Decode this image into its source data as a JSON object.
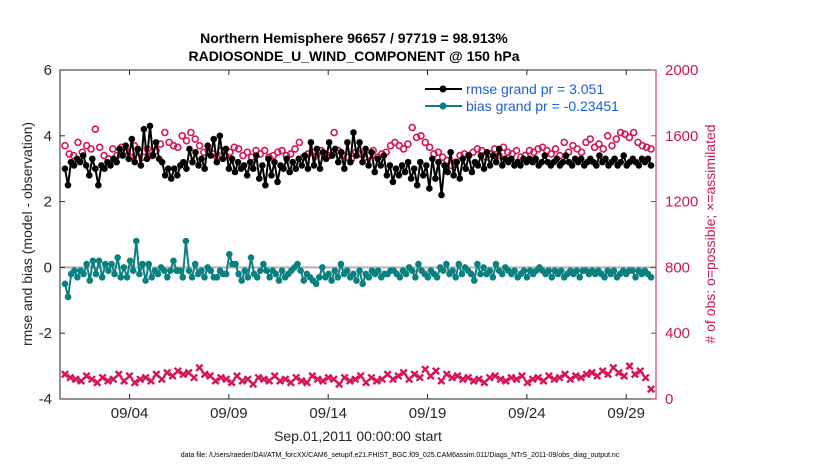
{
  "chart_data": {
    "type": "line",
    "title": "Northern Hemisphere 96657 / 97719 = 98.913%",
    "subtitle": "RADIOSONDE_U_WIND_COMPONENT @ 150 hPa",
    "xlabel": "Sep.01,2011 00:00:00 start",
    "ylabel_left": "rmse and bias (model - observation)",
    "ylabel_right": "# of obs: o=possible; ×=assimilated",
    "footnote": "data file: /Users/raeder/DAI/ATM_forcXX/CAM6_setup/f.e21.FHIST_BGC.f09_025.CAM6assim.011/Diags_NTrS_2011-09/obs_diag_output.nc",
    "xlim": [
      0.5,
      30.5
    ],
    "ylim_left": [
      -4,
      6
    ],
    "ylim_right": [
      0,
      2000
    ],
    "x_ticks": [
      {
        "value": 4,
        "label": "09/04"
      },
      {
        "value": 9,
        "label": "09/09"
      },
      {
        "value": 14,
        "label": "09/14"
      },
      {
        "value": 19,
        "label": "09/19"
      },
      {
        "value": 24,
        "label": "09/24"
      },
      {
        "value": 29,
        "label": "09/29"
      }
    ],
    "left_ticks": [
      "-4",
      "-2",
      "0",
      "2",
      "4",
      "6"
    ],
    "right_ticks": [
      "0",
      "400",
      "800",
      "1200",
      "1600",
      "2000"
    ],
    "legend_position": "top-right",
    "colors": {
      "rmse": "#000000",
      "bias": "#0a8080",
      "obs": "#d6145c",
      "axis_right": "#c8195a",
      "legend_text": "#1f5fd6",
      "zero_line": "#b4b4b4"
    },
    "series": [
      {
        "name": "rmse grand pr = 3.051",
        "axis": "left",
        "marker": "filled-circle",
        "values": [
          3.0,
          2.5,
          3.2,
          3.1,
          3.3,
          3.2,
          3.4,
          3.1,
          2.8,
          3.3,
          3.0,
          2.5,
          3.1,
          3.0,
          3.2,
          3.1,
          3.3,
          3.2,
          3.6,
          3.4,
          3.7,
          3.3,
          3.9,
          3.2,
          3.6,
          3.1,
          4.2,
          3.3,
          4.3,
          3.4,
          3.8,
          3.3,
          3.2,
          2.8,
          3.0,
          2.7,
          3.0,
          2.8,
          3.1,
          3.2,
          3.0,
          3.6,
          3.2,
          3.5,
          3.1,
          3.3,
          3.0,
          3.7,
          3.4,
          3.9,
          3.2,
          4.0,
          3.3,
          3.6,
          3.0,
          3.3,
          2.9,
          3.2,
          3.0,
          3.1,
          2.8,
          3.2,
          3.0,
          3.4,
          2.7,
          3.1,
          2.5,
          3.3,
          2.8,
          3.2,
          2.6,
          3.1,
          3.0,
          3.3,
          2.9,
          3.2,
          3.0,
          3.3,
          3.1,
          3.4,
          3.0,
          3.8,
          3.1,
          3.6,
          3.0,
          3.5,
          3.3,
          3.8,
          3.4,
          3.6,
          3.2,
          3.5,
          3.0,
          3.8,
          3.2,
          4.1,
          3.4,
          3.8,
          3.2,
          3.6,
          3.1,
          3.5,
          2.9,
          3.3,
          3.1,
          3.4,
          2.8,
          3.1,
          2.6,
          3.0,
          2.8,
          3.1,
          2.9,
          3.2,
          2.7,
          3.0,
          2.5,
          3.2,
          2.8,
          3.1,
          2.4,
          3.3,
          2.7,
          3.2,
          2.2,
          3.1,
          2.9,
          3.5,
          2.8,
          3.2,
          2.7,
          3.3,
          3.0,
          3.4,
          2.9,
          3.2,
          3.1,
          3.4,
          3.0,
          3.5,
          3.1,
          3.4,
          3.2,
          3.6,
          3.1,
          3.3,
          3.2,
          3.3,
          3.1,
          3.2,
          3.1,
          3.3,
          3.2,
          3.3,
          3.2,
          3.3,
          3.1,
          3.2,
          3.4,
          3.2,
          3.1,
          3.2,
          3.3,
          3.1,
          3.2,
          3.4,
          3.2,
          3.1,
          3.3,
          3.2,
          3.3,
          3.1,
          3.2,
          3.3,
          3.2,
          3.1,
          3.4,
          3.2,
          3.3,
          3.1,
          3.2,
          3.3,
          3.1,
          3.2,
          3.4,
          3.1,
          3.2,
          3.3,
          3.2,
          3.1,
          3.3,
          3.2,
          3.3,
          3.1
        ]
      },
      {
        "name": "bias grand pr = -0.23451",
        "axis": "left",
        "marker": "filled-circle",
        "values": [
          -0.5,
          -0.9,
          -0.2,
          -0.1,
          -0.3,
          -0.1,
          -0.2,
          0.1,
          -0.4,
          0.2,
          -0.2,
          0.2,
          -0.3,
          0.1,
          -0.1,
          0.1,
          -0.2,
          0.3,
          -0.3,
          0.0,
          -0.3,
          0.2,
          -0.1,
          0.8,
          -0.2,
          0.1,
          -0.4,
          0.1,
          -0.3,
          -0.1,
          -0.2,
          0.0,
          -0.1,
          -0.3,
          -0.1,
          0.2,
          -0.1,
          -0.1,
          -0.3,
          0.8,
          -0.1,
          -0.3,
          0.1,
          -0.2,
          -0.1,
          -0.3,
          0.0,
          -0.1,
          -0.3,
          -0.3,
          -0.1,
          -0.2,
          -0.2,
          0.4,
          0.1,
          0.1,
          -0.2,
          -0.4,
          -0.1,
          -0.3,
          0.3,
          -0.2,
          -0.3,
          -0.1,
          0.1,
          -0.1,
          -0.3,
          -0.1,
          -0.2,
          -0.4,
          -0.1,
          -0.3,
          -0.2,
          -0.1,
          0.0,
          0.1,
          -0.1,
          -0.4,
          -0.2,
          -0.3,
          -0.4,
          -0.5,
          -0.3,
          0.0,
          -0.3,
          -0.2,
          -0.4,
          -0.1,
          -0.3,
          0.1,
          -0.2,
          -0.1,
          -0.3,
          -0.2,
          -0.4,
          -0.1,
          -0.5,
          -0.2,
          -0.3,
          -0.1,
          -0.2,
          -0.1,
          -0.3,
          -0.2,
          -0.2,
          -0.1,
          -0.1,
          -0.2,
          -0.3,
          -0.1,
          -0.2,
          0.0,
          -0.1,
          -0.3,
          0.1,
          -0.1,
          -0.2,
          -0.3,
          -0.1,
          -0.2,
          -0.3,
          0.0,
          -0.1,
          0.1,
          -0.2,
          -0.1,
          -0.3,
          0.1,
          -0.2,
          0.0,
          -0.1,
          -0.2,
          -0.4,
          0.1,
          -0.2,
          0.0,
          -0.2,
          -0.1,
          -0.3,
          0.1,
          -0.1,
          -0.2,
          0.0,
          -0.1,
          -0.2,
          -0.1,
          -0.3,
          -0.2,
          -0.1,
          -0.3,
          -0.1,
          -0.2,
          -0.1,
          0.0,
          -0.1,
          -0.2,
          -0.1,
          -0.3,
          -0.1,
          -0.2,
          -0.1,
          -0.3,
          -0.2,
          -0.1,
          -0.2,
          -0.1,
          -0.3,
          -0.1,
          -0.1,
          -0.2,
          -0.1,
          -0.2,
          -0.1,
          -0.2,
          -0.3,
          -0.1,
          -0.2,
          -0.1,
          -0.3,
          -0.2,
          -0.1,
          -0.2,
          -0.1,
          -0.1,
          -0.3,
          -0.1,
          -0.2,
          -0.1,
          -0.2,
          -0.3
        ]
      }
    ],
    "obs_possible": {
      "axis": "right",
      "marker": "circle",
      "values": [
        1540,
        1490,
        1480,
        1560,
        1500,
        1540,
        1520,
        1640,
        1530,
        1480,
        1460,
        1520,
        1480,
        1530,
        1510,
        1470,
        1540,
        1500,
        1470,
        1520,
        1480,
        1510,
        1550,
        1620,
        1560,
        1540,
        1530,
        1600,
        1570,
        1620,
        1580,
        1540,
        1500,
        1510,
        1490,
        1470,
        1510,
        1480,
        1500,
        1530,
        1520,
        1480,
        1500,
        1470,
        1510,
        1490,
        1510,
        1470,
        1480,
        1500,
        1510,
        1480,
        1490,
        1520,
        1560,
        1470,
        1490,
        1500,
        1480,
        1510,
        1490,
        1480,
        1620,
        1510,
        1480,
        1470,
        1460,
        1500,
        1490,
        1470,
        1480,
        1510,
        1470,
        1490,
        1500,
        1540,
        1560,
        1540,
        1520,
        1550,
        1650,
        1590,
        1600,
        1560,
        1530,
        1490,
        1500,
        1470,
        1450,
        1420,
        1440,
        1480,
        1490,
        1480,
        1500,
        1520,
        1510,
        1470,
        1490,
        1520,
        1480,
        1530,
        1500,
        1490,
        1510,
        1470,
        1480,
        1510,
        1500,
        1520,
        1530,
        1510,
        1490,
        1520,
        1480,
        1560,
        1500,
        1540,
        1520,
        1500,
        1560,
        1580,
        1530,
        1550,
        1520,
        1600,
        1540,
        1580,
        1620,
        1610,
        1590,
        1620,
        1560,
        1540,
        1530,
        1520
      ]
    },
    "obs_assimilated": {
      "axis": "right",
      "marker": "x",
      "values": [
        150,
        130,
        120,
        110,
        140,
        120,
        100,
        130,
        110,
        120,
        150,
        110,
        140,
        100,
        120,
        130,
        110,
        150,
        120,
        160,
        140,
        170,
        150,
        160,
        130,
        190,
        150,
        140,
        110,
        130,
        120,
        100,
        140,
        110,
        120,
        90,
        130,
        120,
        110,
        140,
        110,
        120,
        100,
        130,
        110,
        100,
        140,
        120,
        110,
        130,
        120,
        90,
        130,
        110,
        120,
        140,
        100,
        130,
        110,
        120,
        150,
        120,
        140,
        160,
        120,
        150,
        130,
        180,
        140,
        170,
        110,
        150,
        130,
        140,
        120,
        130,
        110,
        120,
        100,
        130,
        140,
        120,
        110,
        130,
        120,
        140,
        100,
        120,
        130,
        110,
        140,
        120,
        130,
        150,
        120,
        140,
        130,
        150,
        160,
        140,
        170,
        150,
        190,
        160,
        140,
        200,
        150,
        170,
        130,
        60
      ]
    }
  }
}
